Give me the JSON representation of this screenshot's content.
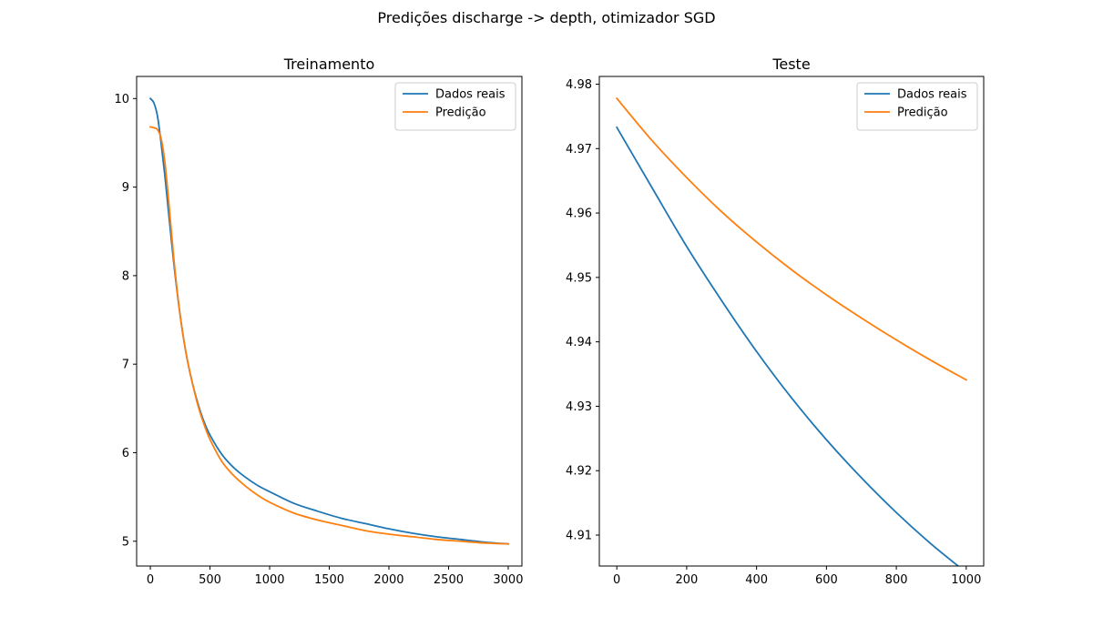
{
  "figure": {
    "title": "Predições discharge -> depth, otimizador SGD"
  },
  "colors": {
    "series_real": "#1f77b4",
    "series_pred": "#ff7f0e"
  },
  "chart_data": [
    {
      "type": "line",
      "title": "Treinamento",
      "xlabel": "",
      "ylabel": "",
      "xlim": [
        -115,
        3115
      ],
      "ylim": [
        4.72,
        10.25
      ],
      "xticks": [
        0,
        500,
        1000,
        1500,
        2000,
        2500,
        3000
      ],
      "xtick_labels": [
        "0",
        "500",
        "1000",
        "1500",
        "2000",
        "2500",
        "3000"
      ],
      "yticks": [
        5,
        6,
        7,
        8,
        9,
        10
      ],
      "ytick_labels": [
        "5",
        "6",
        "7",
        "8",
        "9",
        "10"
      ],
      "grid": false,
      "legend": "top-right",
      "series": [
        {
          "name": "Dados reais",
          "color": "#1f77b4",
          "x": [
            0,
            30,
            60,
            90,
            120,
            150,
            200,
            250,
            300,
            350,
            400,
            450,
            500,
            600,
            700,
            800,
            900,
            1000,
            1200,
            1400,
            1600,
            1800,
            2000,
            2200,
            2400,
            2600,
            2800,
            3000
          ],
          "y": [
            10.0,
            9.95,
            9.8,
            9.5,
            9.15,
            8.75,
            8.1,
            7.55,
            7.12,
            6.8,
            6.55,
            6.35,
            6.2,
            5.98,
            5.83,
            5.72,
            5.63,
            5.56,
            5.43,
            5.34,
            5.26,
            5.2,
            5.14,
            5.09,
            5.05,
            5.02,
            4.99,
            4.97
          ]
        },
        {
          "name": "Predição",
          "color": "#ff7f0e",
          "x": [
            0,
            30,
            60,
            90,
            120,
            150,
            200,
            250,
            300,
            350,
            400,
            450,
            500,
            600,
            700,
            800,
            900,
            1000,
            1200,
            1400,
            1600,
            1800,
            2000,
            2200,
            2400,
            2600,
            2800,
            3000
          ],
          "y": [
            9.68,
            9.67,
            9.65,
            9.55,
            9.3,
            8.9,
            8.15,
            7.55,
            7.12,
            6.8,
            6.53,
            6.32,
            6.15,
            5.9,
            5.74,
            5.62,
            5.52,
            5.44,
            5.32,
            5.24,
            5.18,
            5.12,
            5.08,
            5.05,
            5.02,
            5.0,
            4.98,
            4.97
          ]
        }
      ]
    },
    {
      "type": "line",
      "title": "Teste",
      "xlabel": "",
      "ylabel": "",
      "xlim": [
        -50,
        1050
      ],
      "ylim": [
        4.9052,
        4.9812
      ],
      "xticks": [
        0,
        200,
        400,
        600,
        800,
        1000
      ],
      "xtick_labels": [
        "0",
        "200",
        "400",
        "600",
        "800",
        "1000"
      ],
      "yticks": [
        4.91,
        4.92,
        4.93,
        4.94,
        4.95,
        4.96,
        4.97,
        4.98
      ],
      "ytick_labels": [
        "4.91",
        "4.92",
        "4.93",
        "4.94",
        "4.95",
        "4.96",
        "4.97",
        "4.98"
      ],
      "grid": false,
      "legend": "top-right",
      "series": [
        {
          "name": "Dados reais",
          "color": "#1f77b4",
          "x": [
            0,
            100,
            200,
            300,
            400,
            500,
            600,
            700,
            800,
            900,
            1000
          ],
          "y": [
            4.9733,
            4.964,
            4.9548,
            4.9464,
            4.9385,
            4.9313,
            4.9248,
            4.9189,
            4.9135,
            4.9086,
            4.9042
          ]
        },
        {
          "name": "Predição",
          "color": "#ff7f0e",
          "x": [
            0,
            100,
            200,
            300,
            400,
            500,
            600,
            700,
            800,
            900,
            1000
          ],
          "y": [
            4.9778,
            4.9713,
            4.9655,
            4.9602,
            4.9555,
            4.9512,
            4.9473,
            4.9437,
            4.9403,
            4.9371,
            4.9341
          ]
        }
      ]
    }
  ]
}
